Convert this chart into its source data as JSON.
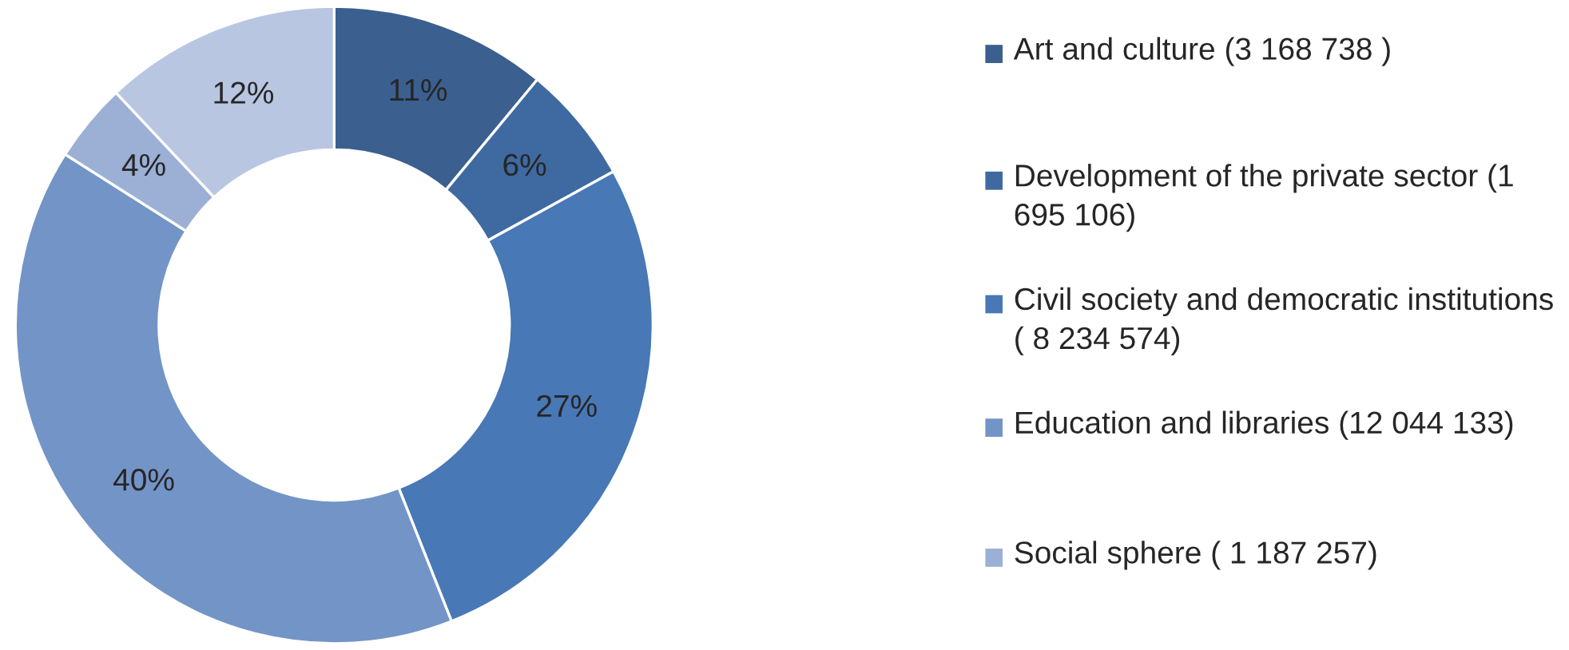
{
  "chart_data": {
    "type": "donut",
    "categories": [
      "Art and culture (3 168 738 )",
      "Development of the private sector (1 695 106)",
      "Civil society and democratic institutions ( 8 234 574)",
      "Education and libraries (12 044 133)",
      "Social sphere ( 1 187 257)",
      null
    ],
    "values": [
      11,
      6,
      27,
      40,
      4,
      12
    ],
    "value_labels": [
      "11%",
      "6%",
      "27%",
      "40%",
      "4%",
      "12%"
    ],
    "colors": [
      "#3b5f8e",
      "#3f69a1",
      "#4878b5",
      "#7394c6",
      "#9cb0d6",
      "#b8c6e2"
    ],
    "legend": "right"
  }
}
